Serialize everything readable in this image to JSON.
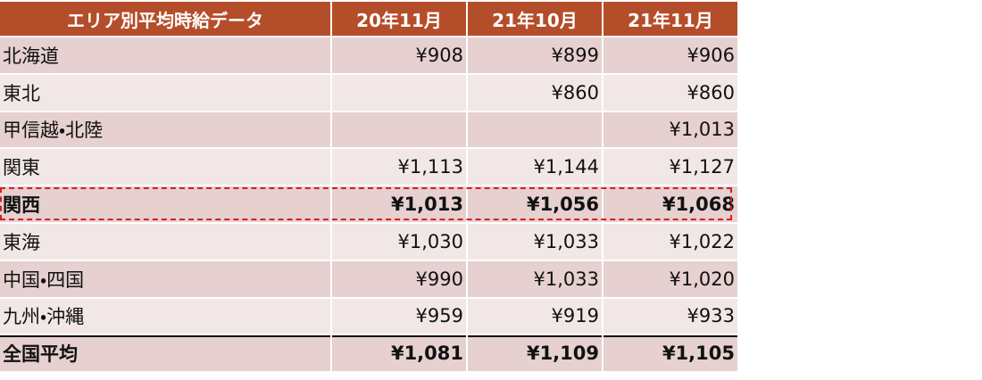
{
  "table": {
    "header": [
      "エリア別平均時給データ",
      "20年11月",
      "21年10月",
      "21年11月"
    ],
    "rows": [
      [
        "北海道",
        "¥908",
        "¥899",
        "¥906"
      ],
      [
        "東北",
        null,
        "¥860",
        "¥860"
      ],
      [
        "甲信越・北陸",
        null,
        null,
        "¥1,013"
      ],
      [
        "関東",
        "¥1,113",
        "¥1,144",
        "¥1,127"
      ],
      [
        "関西",
        "¥1,013",
        "¥1,056",
        "¥1,068"
      ],
      [
        "東海",
        "¥1,030",
        "¥1,033",
        "¥1,022"
      ],
      [
        "中国・四国",
        "¥990",
        "¥1,033",
        "¥1,020"
      ],
      [
        "九州・沖縄",
        "¥959",
        "¥919",
        "¥933"
      ],
      [
        "全国平均",
        "¥1,081",
        "¥1,109",
        "¥1,105"
      ]
    ]
  }
}
